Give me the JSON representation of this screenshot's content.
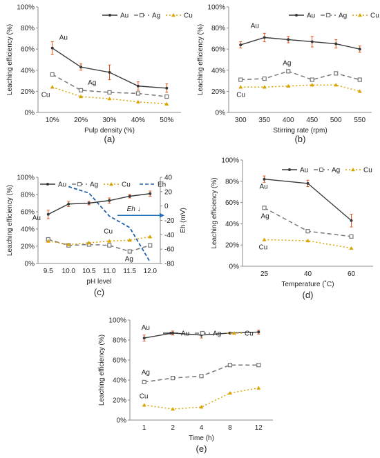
{
  "panels_order": [
    "a",
    "b",
    "c",
    "d",
    "e"
  ],
  "chart_data": [
    {
      "id": "a",
      "type": "line",
      "panel_label": "(a)",
      "xlabel": "Pulp density (%)",
      "ylabel": "Leaching efficiency (%)",
      "categories": [
        "10%",
        "20%",
        "30%",
        "40%",
        "50%"
      ],
      "ylim": [
        0,
        100
      ],
      "yticks": [
        "0%",
        "20%",
        "40%",
        "60%",
        "80%",
        "100%"
      ],
      "grid": false,
      "legend_placement": "top-right",
      "series": [
        {
          "name": "Au",
          "values": [
            61,
            43,
            38,
            25,
            23
          ],
          "errors": [
            6,
            3,
            7,
            4,
            4
          ],
          "label": "Au",
          "label_index": 0
        },
        {
          "name": "Ag",
          "values": [
            36,
            21,
            19,
            18,
            15
          ],
          "label": "Ag",
          "label_index": 1
        },
        {
          "name": "Cu",
          "values": [
            24,
            15,
            13,
            10,
            8
          ],
          "label": "Cu",
          "label_index": 0
        }
      ]
    },
    {
      "id": "b",
      "type": "line",
      "panel_label": "(b)",
      "xlabel": "Stirring rate (rpm)",
      "ylabel": "Leaching efficiency (%)",
      "categories": [
        "300",
        "350",
        "400",
        "450",
        "500",
        "550"
      ],
      "ylim": [
        0,
        100
      ],
      "yticks": [
        "0%",
        "20%",
        "40%",
        "60%",
        "80%",
        "100%"
      ],
      "grid": false,
      "legend_placement": "top-right",
      "series": [
        {
          "name": "Au",
          "values": [
            64,
            71,
            69,
            67,
            65,
            60
          ],
          "errors": [
            3,
            4,
            3,
            5,
            4,
            3
          ],
          "label": "Au",
          "label_index": 1
        },
        {
          "name": "Ag",
          "values": [
            31,
            32,
            39,
            31,
            37,
            31
          ],
          "label": "Ag",
          "label_index": 2
        },
        {
          "name": "Cu",
          "values": [
            24,
            24,
            25,
            26,
            26,
            20
          ],
          "label": "Cu",
          "label_index": 0
        }
      ]
    },
    {
      "id": "c",
      "type": "line",
      "panel_label": "(c)",
      "xlabel": "pH level",
      "ylabel": "Leaching efficiency (%)",
      "ylabel_right": "Eh (mV)",
      "categories": [
        "9.5",
        "10.0",
        "10.5",
        "11.0",
        "11.5",
        "12.0"
      ],
      "ylim": [
        0,
        100
      ],
      "yticks": [
        "0%",
        "20%",
        "40%",
        "60%",
        "80%",
        "100%"
      ],
      "ylim_right": [
        -80,
        40
      ],
      "yticks_right": [
        "-80",
        "-60",
        "-40",
        "-20",
        "0",
        "20",
        "40"
      ],
      "grid": false,
      "legend_placement": "top",
      "series": [
        {
          "name": "Au",
          "values": [
            57,
            69,
            70,
            73,
            78,
            81
          ],
          "errors": [
            5,
            3,
            2,
            3,
            2,
            3
          ],
          "label": "Au",
          "label_index": 0
        },
        {
          "name": "Ag",
          "values": [
            28,
            21,
            22,
            21,
            14,
            21
          ],
          "label": "Ag",
          "label_index": 4
        },
        {
          "name": "Cu",
          "values": [
            26,
            22,
            24,
            26,
            27,
            31
          ],
          "label": "Cu",
          "label_index": 3
        }
      ],
      "eh_series": {
        "name": "Eh",
        "x": [
          10.0,
          10.5,
          11.0,
          11.5,
          12.0
        ],
        "values": [
          27,
          18,
          -14,
          -30,
          -78
        ]
      },
      "annotation": {
        "text": "Eh",
        "arrow": "↓"
      }
    },
    {
      "id": "d",
      "type": "line",
      "panel_label": "(d)",
      "xlabel": "Temperature (˚C)",
      "ylabel": "Leaching efficiency (%)",
      "categories": [
        "25",
        "40",
        "60"
      ],
      "ylim": [
        0,
        100
      ],
      "yticks": [
        "0%",
        "20%",
        "40%",
        "60%",
        "80%",
        "100%"
      ],
      "grid": false,
      "legend_placement": "top-right",
      "series": [
        {
          "name": "Au",
          "values": [
            82,
            78,
            43
          ],
          "errors": [
            3,
            3,
            6
          ],
          "label": "Au",
          "label_index": 0
        },
        {
          "name": "Ag",
          "values": [
            55,
            33,
            28
          ],
          "label": "Ag",
          "label_index": 0
        },
        {
          "name": "Cu",
          "values": [
            25,
            24,
            17
          ],
          "label": "Cu",
          "label_index": 0
        }
      ]
    },
    {
      "id": "e",
      "type": "line",
      "panel_label": "(e)",
      "xlabel": "Time (h)",
      "ylabel": "Leaching efficiency (%)",
      "categories": [
        "1",
        "2",
        "4",
        "8",
        "12"
      ],
      "ylim": [
        0,
        100
      ],
      "yticks": [
        "0%",
        "20%",
        "40%",
        "60%",
        "80%",
        "100%"
      ],
      "grid": false,
      "legend_placement": "top",
      "series": [
        {
          "name": "Au",
          "values": [
            82,
            87,
            85,
            87,
            88
          ],
          "errors": [
            3,
            2,
            3,
            1,
            2
          ],
          "label": "Au",
          "label_index": 0
        },
        {
          "name": "Ag",
          "values": [
            38,
            42,
            44,
            55,
            55
          ],
          "label": "Ag",
          "label_index": 0
        },
        {
          "name": "Cu",
          "values": [
            15,
            11,
            13,
            27,
            32
          ],
          "label": "Cu",
          "label_index": 0
        }
      ]
    }
  ],
  "style": {
    "au_color": "#3a3a3a",
    "ag_color": "#777777",
    "cu_color": "#d9a400",
    "eh_color": "#1f5fa8",
    "error_color": "#e0561d",
    "arrow_color": "#1f6fc0"
  }
}
